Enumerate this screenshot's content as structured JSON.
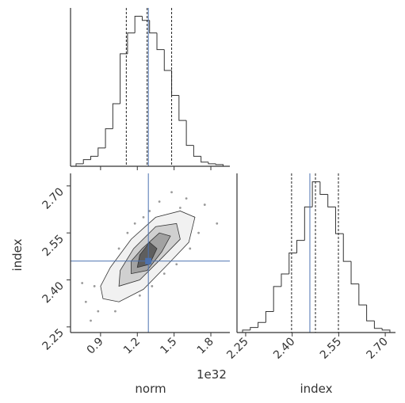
{
  "chart_data": [
    {
      "type": "histogram",
      "bins": [
        0.7,
        0.76,
        0.82,
        0.88,
        0.94,
        1.0,
        1.06,
        1.12,
        1.18,
        1.24,
        1.3,
        1.36,
        1.42,
        1.48,
        1.54,
        1.6,
        1.66,
        1.72,
        1.78,
        1.84,
        1.9
      ],
      "values": [
        3,
        8,
        12,
        22,
        45,
        75,
        135,
        160,
        180,
        175,
        160,
        140,
        115,
        85,
        55,
        25,
        12,
        5,
        3,
        2
      ],
      "xlim": [
        0.655,
        1.955
      ],
      "xticks": [
        0.9,
        1.2,
        1.5,
        1.8
      ],
      "ylim": [
        0,
        190
      ],
      "color": "#333333",
      "quantiles": [
        1.11,
        1.28,
        1.48
      ],
      "truth": 1.29,
      "truth_color": "#4c72b0"
    },
    {
      "type": "scatter",
      "xlabel": "norm",
      "ylabel": "index",
      "x_offset_label": "1e32",
      "x": [
        0.78,
        0.85,
        0.88,
        0.92,
        0.95,
        0.98,
        1.0,
        1.02,
        1.04,
        1.05,
        1.08,
        1.1,
        1.12,
        1.14,
        1.16,
        1.18,
        1.2,
        1.22,
        1.25,
        1.27,
        1.3,
        1.32,
        1.35,
        1.38,
        1.4,
        1.42,
        1.45,
        1.48,
        1.5,
        1.52,
        1.55,
        1.58,
        1.6,
        1.63,
        1.66,
        1.7,
        1.75,
        0.82,
        1.85,
        0.75
      ],
      "y": [
        2.33,
        2.38,
        2.3,
        2.36,
        2.41,
        2.35,
        2.44,
        2.3,
        2.39,
        2.5,
        2.43,
        2.36,
        2.55,
        2.46,
        2.4,
        2.58,
        2.52,
        2.35,
        2.6,
        2.44,
        2.62,
        2.38,
        2.56,
        2.65,
        2.48,
        2.42,
        2.6,
        2.68,
        2.52,
        2.45,
        2.63,
        2.57,
        2.66,
        2.5,
        2.6,
        2.55,
        2.64,
        2.27,
        2.58,
        2.39
      ],
      "color": "#9a9a9a",
      "contours": [
        {
          "color": "#f1f1f1",
          "x": [
            0.92,
            1.05,
            1.25,
            1.45,
            1.62,
            1.67,
            1.55,
            1.35,
            1.15,
            0.98,
            0.9
          ],
          "y": [
            2.34,
            2.33,
            2.37,
            2.45,
            2.52,
            2.6,
            2.62,
            2.6,
            2.53,
            2.44,
            2.38
          ]
        },
        {
          "color": "#d0d0d0",
          "x": [
            1.05,
            1.22,
            1.4,
            1.55,
            1.52,
            1.35,
            1.17,
            1.06
          ],
          "y": [
            2.38,
            2.4,
            2.47,
            2.53,
            2.58,
            2.57,
            2.5,
            2.43
          ]
        },
        {
          "color": "#a2a2a2",
          "x": [
            1.15,
            1.28,
            1.4,
            1.47,
            1.38,
            1.24,
            1.15
          ],
          "y": [
            2.42,
            2.43,
            2.49,
            2.54,
            2.55,
            2.5,
            2.46
          ]
        },
        {
          "color": "#5e5e5e",
          "x": [
            1.2,
            1.3,
            1.36,
            1.3,
            1.22
          ],
          "y": [
            2.44,
            2.45,
            2.5,
            2.52,
            2.48
          ]
        }
      ],
      "truth": [
        1.29,
        2.46
      ],
      "truth_color": "#4c72b0",
      "xlim": [
        0.655,
        1.955
      ],
      "xticks": [
        0.9,
        1.2,
        1.5,
        1.8
      ],
      "ylim": [
        2.232,
        2.74
      ],
      "yticks": [
        {
          "value": 2.7,
          "label": "2.70"
        },
        2.55,
        {
          "value": 2.4,
          "label": "2.40"
        },
        2.25
      ]
    },
    {
      "type": "histogram",
      "xlabel": "index",
      "bins": [
        2.24,
        2.265,
        2.29,
        2.315,
        2.34,
        2.365,
        2.39,
        2.415,
        2.44,
        2.465,
        2.49,
        2.515,
        2.54,
        2.565,
        2.59,
        2.615,
        2.64,
        2.665,
        2.69,
        2.715
      ],
      "values": [
        3,
        6,
        12,
        25,
        55,
        70,
        95,
        110,
        150,
        180,
        165,
        150,
        118,
        85,
        58,
        33,
        14,
        5,
        3
      ],
      "xlim": [
        2.222,
        2.733
      ],
      "xticks": [
        2.25,
        {
          "value": 2.4,
          "label": "2.40"
        },
        2.55,
        {
          "value": 2.7,
          "label": "2.70"
        }
      ],
      "ylim": [
        0,
        190
      ],
      "color": "#333333",
      "quantiles": [
        2.398,
        2.475,
        2.549
      ],
      "truth": 2.457,
      "truth_color": "#4c72b0"
    }
  ]
}
